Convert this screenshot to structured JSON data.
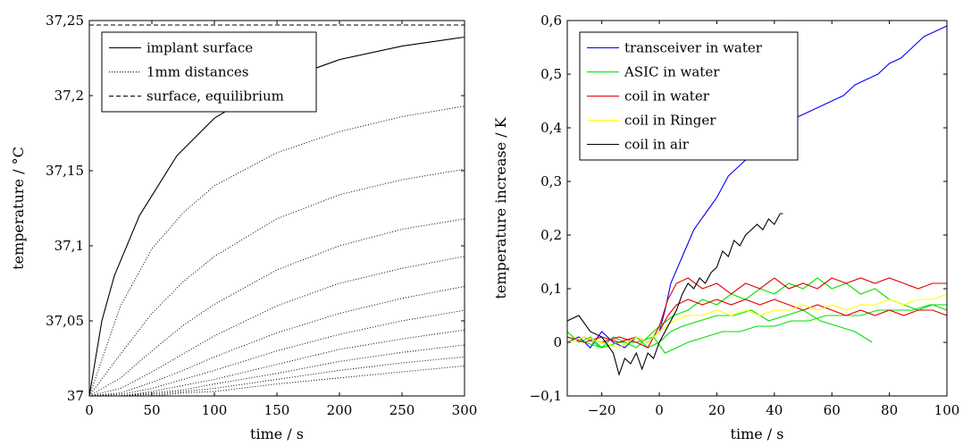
{
  "chart_data": [
    {
      "type": "line",
      "xlabel": "time / s",
      "ylabel": "temperature / °C",
      "xlim": [
        0,
        300
      ],
      "ylim": [
        37,
        37.25
      ],
      "x_ticks": [
        "0",
        "50",
        "100",
        "150",
        "200",
        "250",
        "300"
      ],
      "y_ticks": [
        "37",
        "37,05",
        "37,1",
        "37,15",
        "37,2",
        "37,25"
      ],
      "grid": false,
      "legend_position": "top-left",
      "series": [
        {
          "name": "implant surface",
          "style": "solid",
          "legend": true,
          "x": [
            0,
            10,
            20,
            40,
            70,
            100,
            130,
            160,
            200,
            250,
            300
          ],
          "y": [
            37.0,
            37.05,
            37.08,
            37.12,
            37.16,
            37.185,
            37.2,
            37.212,
            37.224,
            37.233,
            37.239
          ]
        },
        {
          "name": "1mm distances",
          "style": "dotted",
          "legend": true,
          "x": [
            0,
            25,
            50,
            75,
            100,
            150,
            200,
            250,
            300
          ],
          "y": [
            37.0,
            37.06,
            37.098,
            37.122,
            37.14,
            37.162,
            37.176,
            37.186,
            37.193
          ]
        },
        {
          "style": "dotted",
          "legend": false,
          "x": [
            0,
            25,
            50,
            75,
            100,
            150,
            200,
            250,
            300
          ],
          "y": [
            37.0,
            37.028,
            37.055,
            37.076,
            37.093,
            37.118,
            37.134,
            37.144,
            37.151
          ]
        },
        {
          "style": "dotted",
          "legend": false,
          "x": [
            0,
            25,
            50,
            75,
            100,
            150,
            200,
            250,
            300
          ],
          "y": [
            37.0,
            37.012,
            37.03,
            37.047,
            37.061,
            37.084,
            37.1,
            37.111,
            37.118
          ]
        },
        {
          "style": "dotted",
          "legend": false,
          "x": [
            0,
            25,
            50,
            75,
            100,
            150,
            200,
            250,
            300
          ],
          "y": [
            37.0,
            37.005,
            37.016,
            37.028,
            37.04,
            37.06,
            37.075,
            37.085,
            37.093
          ]
        },
        {
          "style": "dotted",
          "legend": false,
          "x": [
            0,
            25,
            50,
            75,
            100,
            150,
            200,
            250,
            300
          ],
          "y": [
            37.0,
            37.002,
            37.009,
            37.017,
            37.026,
            37.042,
            37.055,
            37.065,
            37.073
          ]
        },
        {
          "style": "dotted",
          "legend": false,
          "x": [
            0,
            25,
            50,
            75,
            100,
            150,
            200,
            250,
            300
          ],
          "y": [
            37.0,
            37.001,
            37.005,
            37.011,
            37.017,
            37.03,
            37.041,
            37.05,
            37.057
          ]
        },
        {
          "style": "dotted",
          "legend": false,
          "x": [
            0,
            25,
            50,
            75,
            100,
            150,
            200,
            250,
            300
          ],
          "y": [
            37.0,
            37.0,
            37.003,
            37.007,
            37.011,
            37.021,
            37.031,
            37.038,
            37.044
          ]
        },
        {
          "style": "dotted",
          "legend": false,
          "x": [
            0,
            25,
            50,
            75,
            100,
            150,
            200,
            250,
            300
          ],
          "y": [
            37.0,
            37.0,
            37.002,
            37.004,
            37.008,
            37.015,
            37.023,
            37.029,
            37.034
          ]
        },
        {
          "style": "dotted",
          "legend": false,
          "x": [
            0,
            25,
            50,
            75,
            100,
            150,
            200,
            250,
            300
          ],
          "y": [
            37.0,
            37.0,
            37.001,
            37.003,
            37.005,
            37.011,
            37.017,
            37.022,
            37.026
          ]
        },
        {
          "style": "dotted",
          "legend": false,
          "x": [
            0,
            25,
            50,
            75,
            100,
            150,
            200,
            250,
            300
          ],
          "y": [
            37.0,
            37.0,
            37.0,
            37.002,
            37.003,
            37.008,
            37.012,
            37.016,
            37.02
          ]
        },
        {
          "name": "surface, equilibrium",
          "style": "dashed",
          "legend": true,
          "x": [
            0,
            300
          ],
          "y": [
            37.247,
            37.247
          ]
        }
      ]
    },
    {
      "type": "line",
      "xlabel": "time / s",
      "ylabel": "temperature increase / K",
      "xlim": [
        -32,
        100
      ],
      "ylim": [
        -0.1,
        0.6
      ],
      "x_ticks": [
        "−20",
        "0",
        "20",
        "40",
        "60",
        "80",
        "100"
      ],
      "y_ticks": [
        "−0,1",
        "0",
        "0,1",
        "0,2",
        "0,3",
        "0,4",
        "0,5",
        "0,6"
      ],
      "grid": false,
      "legend_position": "top-left",
      "series": [
        {
          "name": "transceiver in water",
          "color": "#0000ff",
          "legend": true,
          "x": [
            -32,
            -28,
            -24,
            -20,
            -16,
            -12,
            -8,
            -4,
            0,
            2,
            4,
            8,
            12,
            16,
            20,
            24,
            28,
            32,
            36,
            40,
            44,
            48,
            52,
            56,
            60,
            64,
            68,
            72,
            76,
            80,
            84,
            88,
            92,
            96,
            100
          ],
          "y": [
            0.0,
            0.01,
            -0.01,
            0.02,
            0.0,
            -0.01,
            0.01,
            0.0,
            0.02,
            0.06,
            0.11,
            0.16,
            0.21,
            0.24,
            0.27,
            0.31,
            0.33,
            0.35,
            0.38,
            0.39,
            0.41,
            0.42,
            0.43,
            0.44,
            0.45,
            0.46,
            0.48,
            0.49,
            0.5,
            0.52,
            0.53,
            0.55,
            0.57,
            0.58,
            0.59
          ]
        },
        {
          "name": "ASIC in water",
          "color": "#00e000",
          "legend": true,
          "x": [
            -32,
            -28,
            -24,
            -20,
            -16,
            -12,
            -8,
            -4,
            0,
            5,
            10,
            15,
            20,
            25,
            30,
            35,
            40,
            45,
            50,
            55,
            60,
            65,
            70,
            75,
            80,
            85,
            90,
            95,
            100
          ],
          "y": [
            0.02,
            0.0,
            0.01,
            -0.01,
            0.01,
            0.0,
            -0.01,
            0.01,
            0.03,
            0.05,
            0.06,
            0.08,
            0.07,
            0.09,
            0.08,
            0.1,
            0.09,
            0.11,
            0.1,
            0.12,
            0.1,
            0.11,
            0.09,
            0.1,
            0.08,
            0.07,
            0.06,
            0.07,
            0.06
          ]
        },
        {
          "color": "#00e000",
          "legend": false,
          "x": [
            -32,
            -26,
            -20,
            -14,
            -8,
            -4,
            0,
            4,
            8,
            14,
            20,
            26,
            32,
            38,
            44,
            50,
            56,
            62,
            68,
            74
          ],
          "y": [
            0.01,
            0.0,
            -0.01,
            0.0,
            0.01,
            -0.01,
            0.0,
            0.02,
            0.03,
            0.04,
            0.05,
            0.05,
            0.06,
            0.04,
            0.05,
            0.06,
            0.04,
            0.03,
            0.02,
            0.0
          ]
        },
        {
          "color": "#00e000",
          "legend": false,
          "x": [
            -32,
            -26,
            -20,
            -14,
            -8,
            -2,
            2,
            6,
            10,
            16,
            22,
            28,
            34,
            40,
            46,
            52,
            58,
            64,
            70,
            76,
            82,
            88,
            94,
            100
          ],
          "y": [
            0.0,
            0.01,
            -0.01,
            0.0,
            0.0,
            0.01,
            -0.02,
            -0.01,
            0.0,
            0.01,
            0.02,
            0.02,
            0.03,
            0.03,
            0.04,
            0.04,
            0.05,
            0.05,
            0.05,
            0.06,
            0.06,
            0.06,
            0.07,
            0.07
          ]
        },
        {
          "name": "coil in water",
          "color": "#e00000",
          "legend": true,
          "x": [
            -32,
            -26,
            -20,
            -14,
            -8,
            -4,
            0,
            3,
            6,
            10,
            15,
            20,
            25,
            30,
            35,
            40,
            45,
            50,
            55,
            60,
            65,
            70,
            75,
            80,
            85,
            90,
            95,
            100
          ],
          "y": [
            0.0,
            0.01,
            0.0,
            0.01,
            0.0,
            -0.01,
            0.03,
            0.08,
            0.11,
            0.12,
            0.1,
            0.11,
            0.09,
            0.11,
            0.1,
            0.12,
            0.1,
            0.11,
            0.1,
            0.12,
            0.11,
            0.12,
            0.11,
            0.12,
            0.11,
            0.1,
            0.11,
            0.11
          ]
        },
        {
          "color": "#e00000",
          "legend": false,
          "x": [
            -32,
            -26,
            -20,
            -14,
            -8,
            -4,
            0,
            3,
            6,
            10,
            15,
            20,
            25,
            30,
            35,
            40,
            45,
            50,
            55,
            60,
            65,
            70,
            75,
            80,
            85,
            90,
            95,
            100
          ],
          "y": [
            0.01,
            0.0,
            0.01,
            0.0,
            0.01,
            0.0,
            0.02,
            0.05,
            0.07,
            0.08,
            0.07,
            0.08,
            0.07,
            0.08,
            0.07,
            0.08,
            0.07,
            0.06,
            0.07,
            0.06,
            0.05,
            0.06,
            0.05,
            0.06,
            0.05,
            0.06,
            0.06,
            0.05
          ]
        },
        {
          "name": "coil in Ringer",
          "color": "#ffff00",
          "legend": true,
          "x": [
            -32,
            -26,
            -20,
            -14,
            -8,
            -4,
            0,
            5,
            10,
            15,
            20,
            25,
            30,
            35,
            40,
            45,
            50,
            55,
            60,
            65,
            70,
            75,
            80,
            85,
            90,
            95,
            100
          ],
          "y": [
            0.0,
            0.01,
            0.0,
            -0.01,
            0.01,
            0.0,
            0.02,
            0.04,
            0.05,
            0.05,
            0.06,
            0.05,
            0.06,
            0.05,
            0.06,
            0.06,
            0.07,
            0.06,
            0.07,
            0.06,
            0.07,
            0.07,
            0.08,
            0.07,
            0.08,
            0.08,
            0.09
          ]
        },
        {
          "name": "coil in air",
          "color": "#000000",
          "legend": true,
          "x": [
            -32,
            -28,
            -24,
            -20,
            -16,
            -14,
            -12,
            -10,
            -8,
            -6,
            -4,
            -2,
            0,
            2,
            4,
            6,
            8,
            10,
            12,
            14,
            16,
            18,
            20,
            22,
            24,
            26,
            28,
            30,
            32,
            34,
            36,
            38,
            40,
            42,
            43
          ],
          "y": [
            0.04,
            0.05,
            0.02,
            0.01,
            -0.02,
            -0.06,
            -0.03,
            -0.04,
            -0.02,
            -0.05,
            -0.02,
            -0.03,
            0.0,
            0.02,
            0.04,
            0.06,
            0.09,
            0.11,
            0.1,
            0.12,
            0.11,
            0.13,
            0.14,
            0.17,
            0.16,
            0.19,
            0.18,
            0.2,
            0.21,
            0.22,
            0.21,
            0.23,
            0.22,
            0.24,
            0.24
          ]
        }
      ]
    }
  ]
}
